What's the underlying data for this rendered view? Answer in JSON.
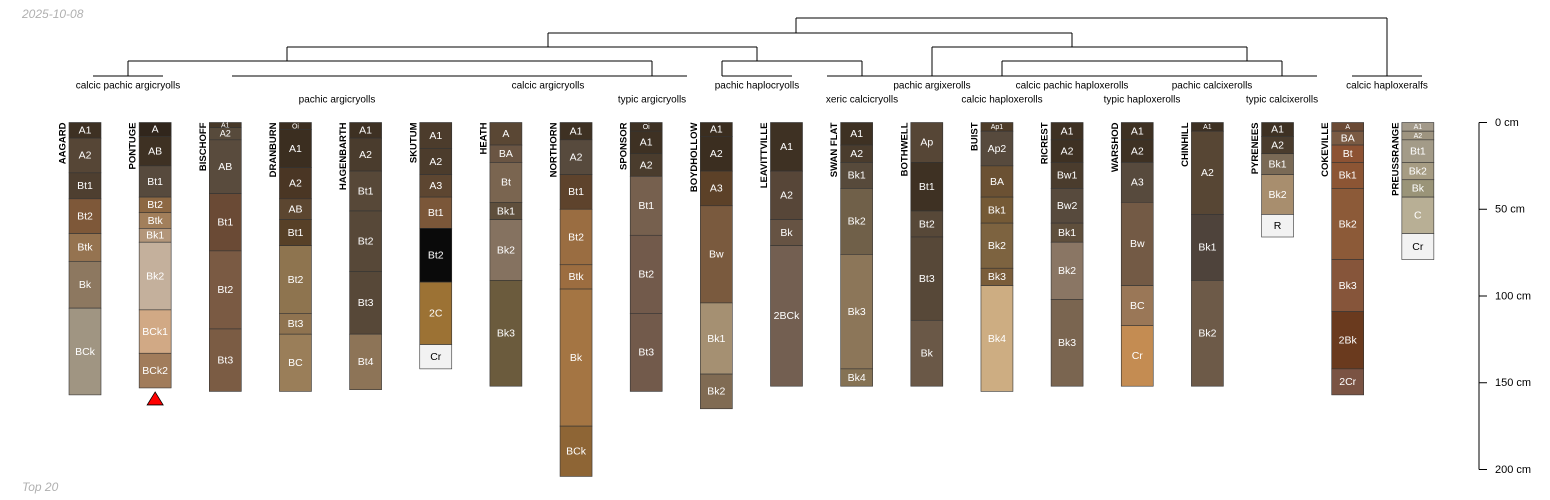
{
  "date_label": "2025-10-08",
  "footer_label": "Top 20",
  "chart_data": {
    "type": "soil-profile-sketch",
    "depth_units": "cm",
    "depth_axis": {
      "min": 0,
      "max": 200,
      "ticks": [
        0,
        50,
        100,
        150,
        200
      ],
      "tick_labels": [
        "0 cm",
        "50 cm",
        "100 cm",
        "150 cm",
        "200 cm"
      ]
    },
    "marked_profile": "PONTUGE",
    "dendrogram": {
      "taxa": [
        "calcic pachic argicryolls",
        "pachic argicryolls",
        "calcic argicryolls",
        "typic argicryolls",
        "pachic haplocryolls",
        "xeric calcicryolls",
        "pachic argixerolls",
        "calcic haploxerolls",
        "calcic pachic haploxerolls",
        "typic haploxerolls",
        "pachic calcixerolls",
        "typic calcixerolls",
        "calcic haploxeralfs"
      ]
    },
    "profiles": [
      {
        "name": "AAGARD",
        "horizons": [
          {
            "name": "A1",
            "top": 0,
            "bottom": 9,
            "color": "#3e3123"
          },
          {
            "name": "A2",
            "top": 9,
            "bottom": 29,
            "color": "#564636"
          },
          {
            "name": "Bt1",
            "top": 29,
            "bottom": 44,
            "color": "#4e3f30"
          },
          {
            "name": "Bt2",
            "top": 44,
            "bottom": 64,
            "color": "#7e5839"
          },
          {
            "name": "Btk",
            "top": 64,
            "bottom": 80,
            "color": "#957350"
          },
          {
            "name": "Bk",
            "top": 80,
            "bottom": 107,
            "color": "#8d7860"
          },
          {
            "name": "BCk",
            "top": 107,
            "bottom": 157,
            "color": "#a09582"
          }
        ]
      },
      {
        "name": "PONTUGE",
        "horizons": [
          {
            "name": "A",
            "top": 0,
            "bottom": 8,
            "color": "#31261c"
          },
          {
            "name": "AB",
            "top": 8,
            "bottom": 25,
            "color": "#3e3123"
          },
          {
            "name": "Bt1",
            "top": 25,
            "bottom": 43,
            "color": "#574a3d"
          },
          {
            "name": "Bt2",
            "top": 43,
            "bottom": 52,
            "color": "#8d6843"
          },
          {
            "name": "Btk",
            "top": 52,
            "bottom": 61,
            "color": "#a27f5b"
          },
          {
            "name": "Bk1",
            "top": 61,
            "bottom": 69,
            "color": "#b3967a"
          },
          {
            "name": "Bk2",
            "top": 69,
            "bottom": 108,
            "color": "#c4b09c"
          },
          {
            "name": "BCk1",
            "top": 108,
            "bottom": 133,
            "color": "#d1a985"
          },
          {
            "name": "BCk2",
            "top": 133,
            "bottom": 153,
            "color": "#a17c5b"
          }
        ]
      },
      {
        "name": "BISCHOFF",
        "horizons": [
          {
            "name": "A1",
            "top": 0,
            "bottom": 3,
            "color": "#463828"
          },
          {
            "name": "A2",
            "top": 3,
            "bottom": 10,
            "color": "#574a3b"
          },
          {
            "name": "AB",
            "top": 10,
            "bottom": 41,
            "color": "#594b3d"
          },
          {
            "name": "Bt1",
            "top": 41,
            "bottom": 74,
            "color": "#6a4a35"
          },
          {
            "name": "Bt2",
            "top": 74,
            "bottom": 119,
            "color": "#7a5a43"
          },
          {
            "name": "Bt3",
            "top": 119,
            "bottom": 155,
            "color": "#7b5c44"
          }
        ]
      },
      {
        "name": "DRANBURN",
        "horizons": [
          {
            "name": "Oi",
            "top": 0,
            "bottom": 4,
            "color": "#3b2e20"
          },
          {
            "name": "A1",
            "top": 4,
            "bottom": 26,
            "color": "#3b2e20"
          },
          {
            "name": "A2",
            "top": 26,
            "bottom": 44,
            "color": "#4a3624"
          },
          {
            "name": "AB",
            "top": 44,
            "bottom": 56,
            "color": "#5c4630"
          },
          {
            "name": "Bt1",
            "top": 56,
            "bottom": 71,
            "color": "#574027"
          },
          {
            "name": "Bt2",
            "top": 71,
            "bottom": 110,
            "color": "#8e744f"
          },
          {
            "name": "Bt3",
            "top": 110,
            "bottom": 122,
            "color": "#8f7350"
          },
          {
            "name": "BC",
            "top": 122,
            "bottom": 155,
            "color": "#9a7e59"
          }
        ]
      },
      {
        "name": "HAGENBARTH",
        "horizons": [
          {
            "name": "A1",
            "top": 0,
            "bottom": 9,
            "color": "#3e3123"
          },
          {
            "name": "A2",
            "top": 9,
            "bottom": 28,
            "color": "#4a3c2d"
          },
          {
            "name": "Bt1",
            "top": 28,
            "bottom": 51,
            "color": "#574838"
          },
          {
            "name": "Bt2",
            "top": 51,
            "bottom": 86,
            "color": "#574838"
          },
          {
            "name": "Bt3",
            "top": 86,
            "bottom": 122,
            "color": "#574838"
          },
          {
            "name": "Bt4",
            "top": 122,
            "bottom": 154,
            "color": "#8d7457"
          }
        ]
      },
      {
        "name": "SKUTUM",
        "horizons": [
          {
            "name": "A1",
            "top": 0,
            "bottom": 15,
            "color": "#4c3c2c"
          },
          {
            "name": "A2",
            "top": 15,
            "bottom": 30,
            "color": "#4c3c2c"
          },
          {
            "name": "A3",
            "top": 30,
            "bottom": 43,
            "color": "#5d4631"
          },
          {
            "name": "Bt1",
            "top": 43,
            "bottom": 61,
            "color": "#7b5739"
          },
          {
            "name": "Bt2",
            "top": 61,
            "bottom": 92,
            "color": "#0a0a0a"
          },
          {
            "name": "2C",
            "top": 92,
            "bottom": 128,
            "color": "#9c7234"
          },
          {
            "name": "Cr",
            "top": 128,
            "bottom": 142,
            "color": "#f2f2f2"
          }
        ]
      },
      {
        "name": "HEATH",
        "horizons": [
          {
            "name": "A",
            "top": 0,
            "bottom": 13,
            "color": "#5a4734"
          },
          {
            "name": "BA",
            "top": 13,
            "bottom": 23,
            "color": "#6a5543"
          },
          {
            "name": "Bt",
            "top": 23,
            "bottom": 46,
            "color": "#7a6550"
          },
          {
            "name": "Bk1",
            "top": 46,
            "bottom": 56,
            "color": "#5f4f3c"
          },
          {
            "name": "Bk2",
            "top": 56,
            "bottom": 91,
            "color": "#857260"
          },
          {
            "name": "Bk3",
            "top": 91,
            "bottom": 152,
            "color": "#6b5b3d"
          }
        ]
      },
      {
        "name": "NORTHORN",
        "horizons": [
          {
            "name": "A1",
            "top": 0,
            "bottom": 10,
            "color": "#3e3123"
          },
          {
            "name": "A2",
            "top": 10,
            "bottom": 30,
            "color": "#574a3d"
          },
          {
            "name": "Bt1",
            "top": 30,
            "bottom": 50,
            "color": "#5e432c"
          },
          {
            "name": "Bt2",
            "top": 50,
            "bottom": 82,
            "color": "#9a6d41"
          },
          {
            "name": "Btk",
            "top": 82,
            "bottom": 96,
            "color": "#9c6d40"
          },
          {
            "name": "Bk",
            "top": 96,
            "bottom": 175,
            "color": "#a47543"
          },
          {
            "name": "BCk",
            "top": 175,
            "bottom": 204,
            "color": "#8e6535"
          }
        ]
      },
      {
        "name": "SPONSOR",
        "horizons": [
          {
            "name": "Oi",
            "top": 0,
            "bottom": 5,
            "color": "#3e3123"
          },
          {
            "name": "A1",
            "top": 5,
            "bottom": 18,
            "color": "#3e3123"
          },
          {
            "name": "A2",
            "top": 18,
            "bottom": 31,
            "color": "#4a3c2d"
          },
          {
            "name": "Bt1",
            "top": 31,
            "bottom": 65,
            "color": "#76604e"
          },
          {
            "name": "Bt2",
            "top": 65,
            "bottom": 110,
            "color": "#725a4b"
          },
          {
            "name": "Bt3",
            "top": 110,
            "bottom": 155,
            "color": "#725a4b"
          }
        ]
      },
      {
        "name": "BOYDHOLLOW",
        "horizons": [
          {
            "name": "A1",
            "top": 0,
            "bottom": 8,
            "color": "#3b2e20"
          },
          {
            "name": "A2",
            "top": 8,
            "bottom": 28,
            "color": "#3b2e20"
          },
          {
            "name": "A3",
            "top": 28,
            "bottom": 48,
            "color": "#5c4128"
          },
          {
            "name": "Bw",
            "top": 48,
            "bottom": 104,
            "color": "#7a5a3e"
          },
          {
            "name": "Bk1",
            "top": 104,
            "bottom": 145,
            "color": "#a59072"
          },
          {
            "name": "Bk2",
            "top": 145,
            "bottom": 165,
            "color": "#806b53"
          }
        ]
      },
      {
        "name": "LEAVITTVILLE",
        "horizons": [
          {
            "name": "A1",
            "top": 0,
            "bottom": 28,
            "color": "#3e3123"
          },
          {
            "name": "A2",
            "top": 28,
            "bottom": 56,
            "color": "#574638"
          },
          {
            "name": "Bk",
            "top": 56,
            "bottom": 71,
            "color": "#665343"
          },
          {
            "name": "2BCk",
            "top": 71,
            "bottom": 152,
            "color": "#735f51"
          }
        ]
      },
      {
        "name": "SWAN FLAT",
        "horizons": [
          {
            "name": "A1",
            "top": 0,
            "bottom": 13,
            "color": "#3e3123"
          },
          {
            "name": "A2",
            "top": 13,
            "bottom": 23,
            "color": "#4a3c2d"
          },
          {
            "name": "Bk1",
            "top": 23,
            "bottom": 38,
            "color": "#574a3b"
          },
          {
            "name": "Bk2",
            "top": 38,
            "bottom": 76,
            "color": "#706049"
          },
          {
            "name": "Bk3",
            "top": 76,
            "bottom": 142,
            "color": "#8c7659"
          },
          {
            "name": "Bk4",
            "top": 142,
            "bottom": 152,
            "color": "#857254"
          }
        ]
      },
      {
        "name": "BOTHWELL",
        "horizons": [
          {
            "name": "Ap",
            "top": 0,
            "bottom": 23,
            "color": "#564636"
          },
          {
            "name": "Bt1",
            "top": 23,
            "bottom": 51,
            "color": "#3e3123"
          },
          {
            "name": "Bt2",
            "top": 51,
            "bottom": 66,
            "color": "#574838"
          },
          {
            "name": "Bt3",
            "top": 66,
            "bottom": 114,
            "color": "#574838"
          },
          {
            "name": "Bk",
            "top": 114,
            "bottom": 152,
            "color": "#6a5847"
          }
        ]
      },
      {
        "name": "BUIST",
        "horizons": [
          {
            "name": "Ap1",
            "top": 0,
            "bottom": 5,
            "color": "#4e3c28"
          },
          {
            "name": "Ap2",
            "top": 5,
            "bottom": 25,
            "color": "#574a3d"
          },
          {
            "name": "BA",
            "top": 25,
            "bottom": 43,
            "color": "#6b5133"
          },
          {
            "name": "Bk1",
            "top": 43,
            "bottom": 58,
            "color": "#755a36"
          },
          {
            "name": "Bk2",
            "top": 58,
            "bottom": 84,
            "color": "#7d6340"
          },
          {
            "name": "Bk3",
            "top": 84,
            "bottom": 94,
            "color": "#7a5d3a"
          },
          {
            "name": "Bk4",
            "top": 94,
            "bottom": 155,
            "color": "#cdad82"
          }
        ]
      },
      {
        "name": "RICREST",
        "horizons": [
          {
            "name": "A1",
            "top": 0,
            "bottom": 10,
            "color": "#3e3123"
          },
          {
            "name": "A2",
            "top": 10,
            "bottom": 23,
            "color": "#3e3123"
          },
          {
            "name": "Bw1",
            "top": 23,
            "bottom": 38,
            "color": "#4a3c2d"
          },
          {
            "name": "Bw2",
            "top": 38,
            "bottom": 58,
            "color": "#574a3d"
          },
          {
            "name": "Bk1",
            "top": 58,
            "bottom": 69,
            "color": "#5f4f3c"
          },
          {
            "name": "Bk2",
            "top": 69,
            "bottom": 102,
            "color": "#8a7664"
          },
          {
            "name": "Bk3",
            "top": 102,
            "bottom": 152,
            "color": "#7a6550"
          }
        ]
      },
      {
        "name": "WARSHOD",
        "horizons": [
          {
            "name": "A1",
            "top": 0,
            "bottom": 10,
            "color": "#3e3123"
          },
          {
            "name": "A2",
            "top": 10,
            "bottom": 23,
            "color": "#3e3123"
          },
          {
            "name": "A3",
            "top": 23,
            "bottom": 46,
            "color": "#574a3d"
          },
          {
            "name": "Bw",
            "top": 46,
            "bottom": 94,
            "color": "#735a45"
          },
          {
            "name": "BC",
            "top": 94,
            "bottom": 117,
            "color": "#9a7757"
          },
          {
            "name": "Cr",
            "top": 117,
            "bottom": 152,
            "color": "#c48c52"
          }
        ]
      },
      {
        "name": "CHINHILL",
        "horizons": [
          {
            "name": "A1",
            "top": 0,
            "bottom": 5,
            "color": "#3e3123"
          },
          {
            "name": "A2",
            "top": 5,
            "bottom": 53,
            "color": "#574634"
          },
          {
            "name": "Bk1",
            "top": 53,
            "bottom": 91,
            "color": "#4e433b"
          },
          {
            "name": "Bk2",
            "top": 91,
            "bottom": 152,
            "color": "#6d5a48"
          }
        ]
      },
      {
        "name": "PYRENEES",
        "horizons": [
          {
            "name": "A1",
            "top": 0,
            "bottom": 8,
            "color": "#3e3123"
          },
          {
            "name": "A2",
            "top": 8,
            "bottom": 18,
            "color": "#4a3c2d"
          },
          {
            "name": "Bk1",
            "top": 18,
            "bottom": 30,
            "color": "#7a6a56"
          },
          {
            "name": "Bk2",
            "top": 30,
            "bottom": 53,
            "color": "#a88e6e"
          },
          {
            "name": "R",
            "top": 53,
            "bottom": 66,
            "color": "#f2f2f2"
          }
        ]
      },
      {
        "name": "COKEVILLE",
        "horizons": [
          {
            "name": "A",
            "top": 0,
            "bottom": 5,
            "color": "#6b4a35"
          },
          {
            "name": "BA",
            "top": 5,
            "bottom": 13,
            "color": "#7a5a43"
          },
          {
            "name": "Bt",
            "top": 13,
            "bottom": 23,
            "color": "#8d5233"
          },
          {
            "name": "Bk1",
            "top": 23,
            "bottom": 38,
            "color": "#8c5534"
          },
          {
            "name": "Bk2",
            "top": 38,
            "bottom": 79,
            "color": "#8c5a38"
          },
          {
            "name": "Bk3",
            "top": 79,
            "bottom": 109,
            "color": "#86553a"
          },
          {
            "name": "2Bk",
            "top": 109,
            "bottom": 142,
            "color": "#6a3a1e"
          },
          {
            "name": "2Cr",
            "top": 142,
            "bottom": 157,
            "color": "#7a5343"
          }
        ]
      },
      {
        "name": "PREUSSRANGE",
        "horizons": [
          {
            "name": "A1",
            "top": 0,
            "bottom": 5,
            "color": "#a39a8a"
          },
          {
            "name": "A2",
            "top": 5,
            "bottom": 10,
            "color": "#9e9480"
          },
          {
            "name": "Bt1",
            "top": 10,
            "bottom": 23,
            "color": "#a39b88"
          },
          {
            "name": "Bk2",
            "top": 23,
            "bottom": 33,
            "color": "#a69c83"
          },
          {
            "name": "Bk",
            "top": 33,
            "bottom": 43,
            "color": "#9a9478"
          },
          {
            "name": "C",
            "top": 43,
            "bottom": 64,
            "color": "#b8af95"
          },
          {
            "name": "Cr",
            "top": 64,
            "bottom": 79,
            "color": "#f2f2f2"
          }
        ]
      }
    ]
  }
}
